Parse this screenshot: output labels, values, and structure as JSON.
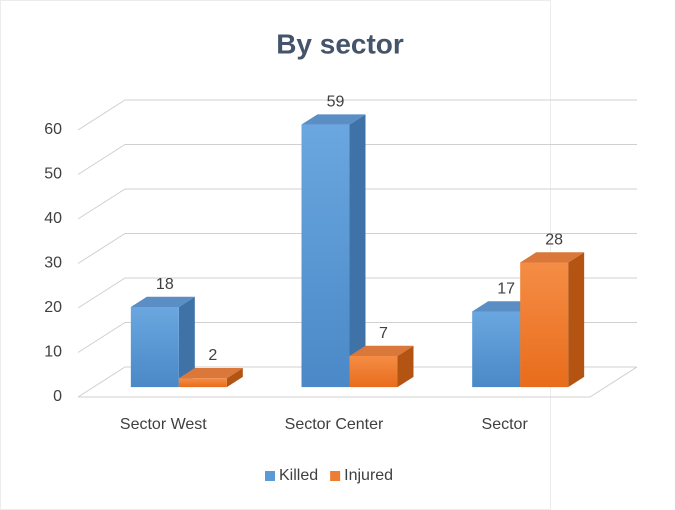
{
  "chart_data": {
    "type": "bar3d",
    "title": "By sector",
    "categories": [
      "Sector West",
      "Sector Center",
      "Sector"
    ],
    "series": [
      {
        "name": "Killed",
        "color": "#5b9bd5",
        "values": [
          18,
          59,
          17
        ]
      },
      {
        "name": "Injured",
        "color": "#ed7d31",
        "values": [
          2,
          7,
          28
        ]
      }
    ],
    "ylim": [
      0,
      60
    ],
    "yticks": [
      0,
      10,
      20,
      30,
      40,
      50,
      60
    ],
    "grid": true,
    "legend": "bottom"
  }
}
